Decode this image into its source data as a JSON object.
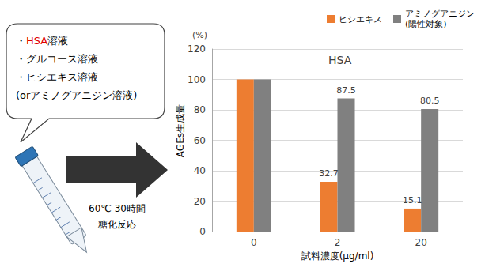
{
  "chart_data": {
    "type": "bar",
    "title": "HSA",
    "xlabel": "試料濃度(μg/ml)",
    "ylabel": "AGEs生成量",
    "y_unit": "(%)",
    "categories": [
      "0",
      "2",
      "20"
    ],
    "series": [
      {
        "name": "ヒシエキス",
        "color": "#ed7d31",
        "values": [
          100,
          32.7,
          15.1
        ],
        "value_labels": [
          null,
          "32.7",
          "15.1"
        ]
      },
      {
        "name": "アミノグアニジン\n(陽性対象)",
        "color": "#808080",
        "values": [
          100,
          87.5,
          80.5
        ],
        "value_labels": [
          null,
          "87.5",
          "80.5"
        ]
      }
    ],
    "ylim": [
      0,
      120
    ],
    "yticks": [
      0,
      20,
      40,
      60,
      80,
      100,
      120
    ],
    "grid": true,
    "legend": "top-right",
    "data_labels": true
  },
  "diagram": {
    "callout": [
      [
        {
          "text": "・"
        },
        {
          "text": "HSA",
          "color": "#e00000"
        },
        {
          "text": "溶液"
        }
      ],
      [
        {
          "text": "・グルコース溶液"
        }
      ],
      [
        {
          "text": "・ヒシエキス溶液"
        }
      ],
      [
        {
          "text": "(orアミノグアニジン溶液)"
        }
      ]
    ],
    "arrow_label": [
      "60℃ 30時間",
      "糖化反応"
    ]
  }
}
